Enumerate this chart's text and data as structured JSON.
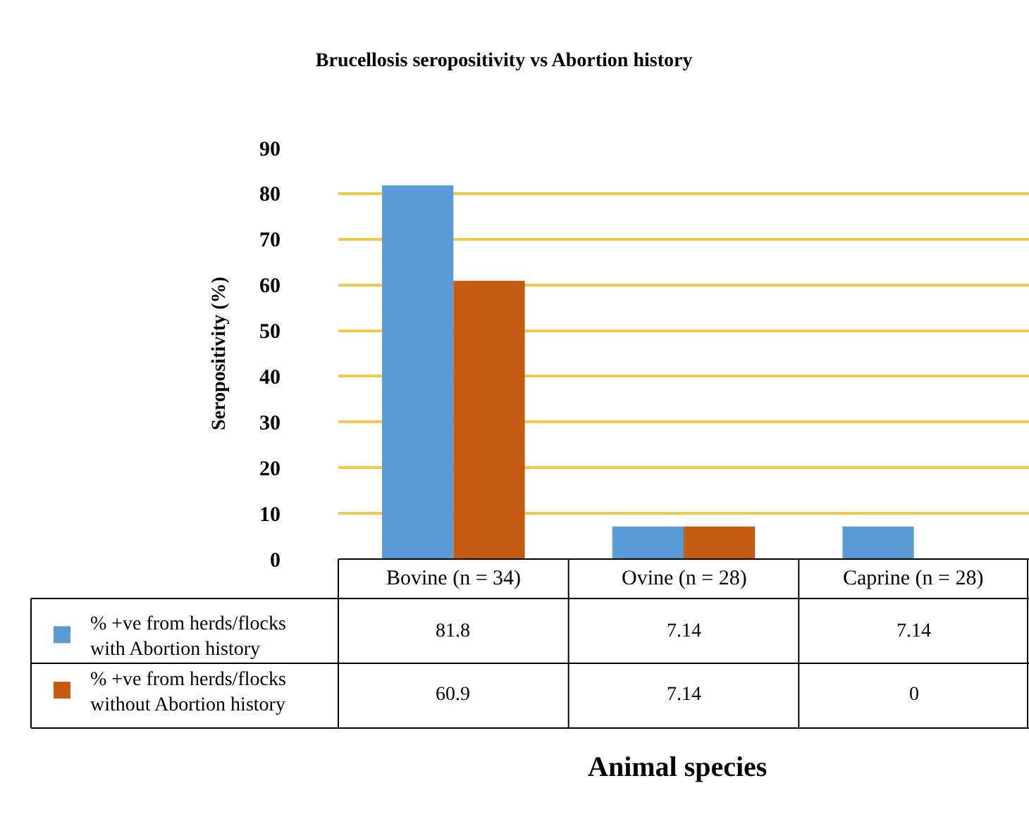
{
  "chart_data": {
    "type": "bar",
    "title": "Brucellosis seropositivity vs Abortion history",
    "annotations": [
      "Animal species"
    ],
    "ylabel": "Seropositivity (%)",
    "categories": [
      "Bovine (n = 34)",
      "Ovine (n = 28)",
      "Caprine (n = 28)"
    ],
    "series": [
      {
        "name": "% +ve from herds/flocks with Abortion history",
        "color": "#5b9bd5",
        "values": [
          81.8,
          7.14,
          7.14
        ]
      },
      {
        "name": "% +ve from herds/flocks without Abortion history",
        "color": "#c55a11",
        "values": [
          60.9,
          7.14,
          0
        ]
      }
    ],
    "ylim": [
      0,
      90
    ],
    "yticks": [
      0,
      10,
      20,
      30,
      40,
      50,
      60,
      70,
      80,
      90
    ],
    "grid": "y",
    "legend": "bottom left",
    "data_labels": true
  }
}
